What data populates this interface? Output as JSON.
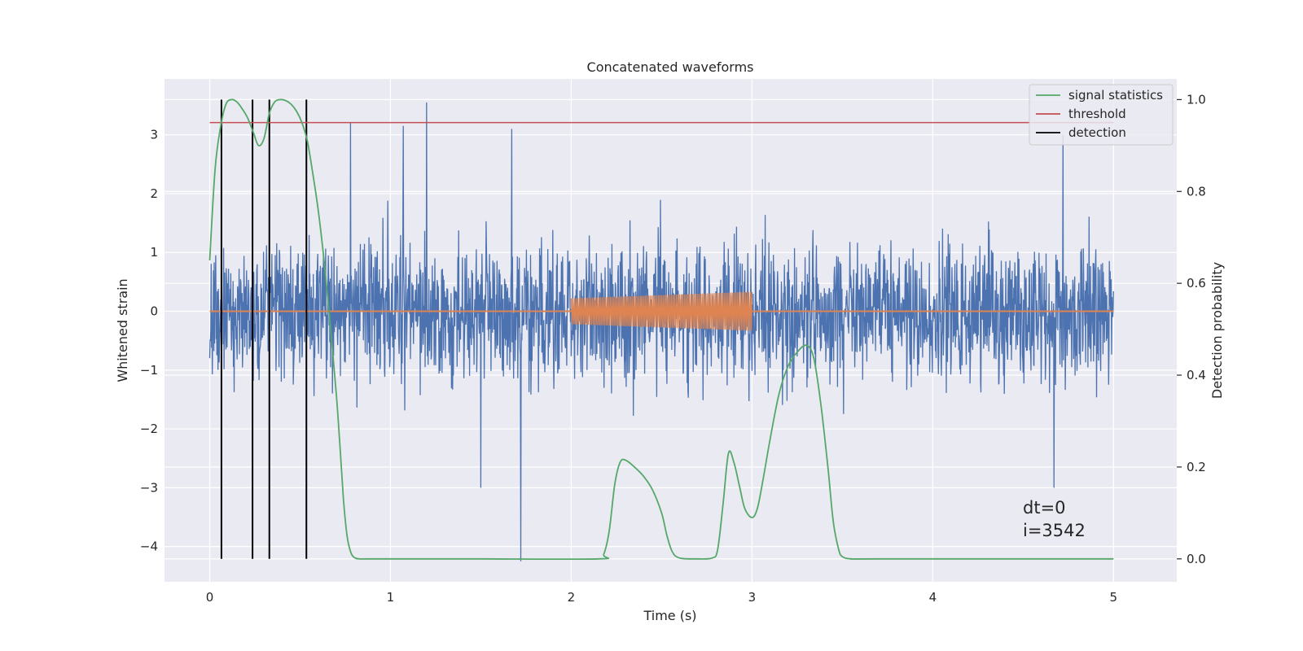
{
  "chart_data": {
    "type": "line",
    "title": "Concatenated waveforms",
    "xlabel": "Time (s)",
    "ylabel": "Whitened strain",
    "y2label": "Detection probability",
    "xlim": [
      -0.25,
      5.35
    ],
    "ylim": [
      -4.6,
      3.95
    ],
    "y2lim": [
      -0.05,
      1.045
    ],
    "xticks": [
      0,
      1,
      2,
      3,
      4,
      5
    ],
    "yticks": [
      -4,
      -3,
      -2,
      -1,
      0,
      1,
      2,
      3
    ],
    "y2ticks": [
      0.0,
      0.2,
      0.4,
      0.6,
      0.8,
      1.0
    ],
    "xtick_labels": [
      "0",
      "1",
      "2",
      "3",
      "4",
      "5"
    ],
    "ytick_labels": [
      "−4",
      "−3",
      "−2",
      "−1",
      "0",
      "1",
      "2",
      "3"
    ],
    "y2tick_labels": [
      "0.0",
      "0.2",
      "0.4",
      "0.6",
      "0.8",
      "1.0"
    ],
    "grid": true,
    "legend_position": "top-right",
    "legend": [
      {
        "label": "signal statistics",
        "color": "#55a868"
      },
      {
        "label": "threshold",
        "color": "#c44e52"
      },
      {
        "label": "detection",
        "color": "#000000"
      }
    ],
    "annotation": {
      "line1": "dt=0",
      "line2": "i=3542"
    },
    "strain": {
      "name": "strain",
      "color": "#4c72b0",
      "x_range": [
        0,
        5
      ],
      "typical_range": [
        -1.3,
        1.3
      ],
      "max": 3.55,
      "min": -4.25,
      "spikes": [
        {
          "x": 1.2,
          "y": 3.55
        },
        {
          "x": 0.78,
          "y": 3.2
        },
        {
          "x": 1.07,
          "y": 3.15
        },
        {
          "x": 1.72,
          "y": -4.25
        },
        {
          "x": 1.67,
          "y": 3.1
        },
        {
          "x": 4.72,
          "y": 3.0
        },
        {
          "x": 1.5,
          "y": -3.0
        },
        {
          "x": 4.67,
          "y": -3.0
        }
      ]
    },
    "template": {
      "name": "template",
      "color": "#dd8452",
      "x_range": [
        2.0,
        3.0
      ],
      "amplitude_range": [
        0.22,
        0.33
      ],
      "baseline": 0
    },
    "threshold": {
      "name": "threshold",
      "color": "#c44e52",
      "x": [
        0,
        5
      ],
      "y": 0.95
    },
    "detections": {
      "name": "detection",
      "color": "#000000",
      "x": [
        0.065,
        0.237,
        0.33,
        0.535
      ],
      "y_range": [
        0,
        1
      ]
    },
    "signal_statistics": {
      "name": "signal statistics",
      "color": "#55a868",
      "x": [
        0.0,
        0.03,
        0.06,
        0.09,
        0.12,
        0.15,
        0.18,
        0.21,
        0.24,
        0.27,
        0.3,
        0.33,
        0.36,
        0.39,
        0.42,
        0.45,
        0.48,
        0.51,
        0.54,
        0.57,
        0.6,
        0.63,
        0.66,
        0.7,
        0.72,
        0.74,
        0.76,
        0.78,
        0.8,
        0.83,
        0.9,
        1.5,
        2.15,
        2.18,
        2.21,
        2.24,
        2.27,
        2.3,
        2.35,
        2.4,
        2.45,
        2.5,
        2.53,
        2.56,
        2.6,
        2.7,
        2.78,
        2.81,
        2.84,
        2.87,
        2.9,
        2.93,
        2.96,
        3.0,
        3.03,
        3.06,
        3.1,
        3.15,
        3.2,
        3.25,
        3.3,
        3.34,
        3.38,
        3.42,
        3.45,
        3.48,
        3.5,
        3.55,
        3.7,
        5.0
      ],
      "y": [
        0.65,
        0.85,
        0.94,
        0.99,
        1.0,
        0.995,
        0.98,
        0.96,
        0.93,
        0.9,
        0.915,
        0.97,
        0.995,
        1.0,
        0.998,
        0.99,
        0.975,
        0.95,
        0.91,
        0.84,
        0.76,
        0.66,
        0.54,
        0.36,
        0.25,
        0.13,
        0.05,
        0.015,
        0.003,
        0.0,
        0.0,
        0.0,
        0.0,
        0.01,
        0.06,
        0.16,
        0.21,
        0.215,
        0.2,
        0.18,
        0.15,
        0.1,
        0.05,
        0.015,
        0.002,
        0.0,
        0.002,
        0.02,
        0.12,
        0.23,
        0.21,
        0.16,
        0.11,
        0.09,
        0.11,
        0.17,
        0.26,
        0.36,
        0.42,
        0.45,
        0.465,
        0.44,
        0.34,
        0.2,
        0.08,
        0.02,
        0.005,
        0.0,
        0.0,
        0.0
      ]
    }
  }
}
